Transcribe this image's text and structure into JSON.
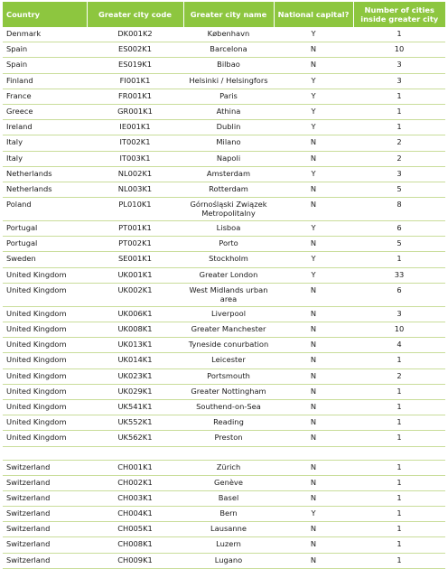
{
  "table": {
    "headers": {
      "country": "Country",
      "code": "Greater city code",
      "name": "Greater city name",
      "capital": "National capital?",
      "count": "Number of cities inside greater city"
    },
    "rows": [
      {
        "country": "Denmark",
        "code": "DK001K2",
        "name": "København",
        "capital": "Y",
        "count": "1"
      },
      {
        "country": "Spain",
        "code": "ES002K1",
        "name": "Barcelona",
        "capital": "N",
        "count": "10"
      },
      {
        "country": "Spain",
        "code": "ES019K1",
        "name": "Bilbao",
        "capital": "N",
        "count": "3"
      },
      {
        "country": "Finland",
        "code": "FI001K1",
        "name": "Helsinki / Helsingfors",
        "capital": "Y",
        "count": "3"
      },
      {
        "country": "France",
        "code": "FR001K1",
        "name": "Paris",
        "capital": "Y",
        "count": "1"
      },
      {
        "country": "Greece",
        "code": "GR001K1",
        "name": "Athina",
        "capital": "Y",
        "count": "1"
      },
      {
        "country": "Ireland",
        "code": "IE001K1",
        "name": "Dublin",
        "capital": "Y",
        "count": "1"
      },
      {
        "country": "Italy",
        "code": "IT002K1",
        "name": "Milano",
        "capital": "N",
        "count": "2"
      },
      {
        "country": "Italy",
        "code": "IT003K1",
        "name": "Napoli",
        "capital": "N",
        "count": "2"
      },
      {
        "country": "Netherlands",
        "code": "NL002K1",
        "name": "Amsterdam",
        "capital": "Y",
        "count": "3"
      },
      {
        "country": "Netherlands",
        "code": "NL003K1",
        "name": "Rotterdam",
        "capital": "N",
        "count": "5"
      },
      {
        "country": "Poland",
        "code": "PL010K1",
        "name": "Górnośląski Związek Metropolitalny",
        "capital": "N",
        "count": "8",
        "tall": true
      },
      {
        "country": "Portugal",
        "code": "PT001K1",
        "name": "Lisboa",
        "capital": "Y",
        "count": "6"
      },
      {
        "country": "Portugal",
        "code": "PT002K1",
        "name": "Porto",
        "capital": "N",
        "count": "5"
      },
      {
        "country": "Sweden",
        "code": "SE001K1",
        "name": "Stockholm",
        "capital": "Y",
        "count": "1"
      },
      {
        "country": "United Kingdom",
        "code": "UK001K1",
        "name": "Greater London",
        "capital": "Y",
        "count": "33"
      },
      {
        "country": "United Kingdom",
        "code": "UK002K1",
        "name": "West Midlands urban area",
        "capital": "N",
        "count": "6",
        "tall": true
      },
      {
        "country": "United Kingdom",
        "code": "UK006K1",
        "name": "Liverpool",
        "capital": "N",
        "count": "3"
      },
      {
        "country": "United Kingdom",
        "code": "UK008K1",
        "name": "Greater Manchester",
        "capital": "N",
        "count": "10"
      },
      {
        "country": "United Kingdom",
        "code": "UK013K1",
        "name": "Tyneside conurbation",
        "capital": "N",
        "count": "4"
      },
      {
        "country": "United Kingdom",
        "code": "UK014K1",
        "name": "Leicester",
        "capital": "N",
        "count": "1"
      },
      {
        "country": "United Kingdom",
        "code": "UK023K1",
        "name": "Portsmouth",
        "capital": "N",
        "count": "2"
      },
      {
        "country": "United Kingdom",
        "code": "UK029K1",
        "name": "Greater Nottingham",
        "capital": "N",
        "count": "1"
      },
      {
        "country": "United Kingdom",
        "code": "UK541K1",
        "name": "Southend-on-Sea",
        "capital": "N",
        "count": "1"
      },
      {
        "country": "United Kingdom",
        "code": "UK552K1",
        "name": "Reading",
        "capital": "N",
        "count": "1"
      },
      {
        "country": "United Kingdom",
        "code": "UK562K1",
        "name": "Preston",
        "capital": "N",
        "count": "1"
      },
      {
        "gap": true
      },
      {
        "country": "Switzerland",
        "code": "CH001K1",
        "name": "Zürich",
        "capital": "N",
        "count": "1"
      },
      {
        "country": "Switzerland",
        "code": "CH002K1",
        "name": "Genève",
        "capital": "N",
        "count": "1"
      },
      {
        "country": "Switzerland",
        "code": "CH003K1",
        "name": "Basel",
        "capital": "N",
        "count": "1"
      },
      {
        "country": "Switzerland",
        "code": "CH004K1",
        "name": "Bern",
        "capital": "Y",
        "count": "1"
      },
      {
        "country": "Switzerland",
        "code": "CH005K1",
        "name": "Lausanne",
        "capital": "N",
        "count": "1"
      },
      {
        "country": "Switzerland",
        "code": "CH008K1",
        "name": "Luzern",
        "capital": "N",
        "count": "1"
      },
      {
        "country": "Switzerland",
        "code": "CH009K1",
        "name": "Lugano",
        "capital": "N",
        "count": "1"
      }
    ]
  },
  "colors": {
    "header_bg": "#8dc63f",
    "row_rule": "#c9dd9a"
  }
}
